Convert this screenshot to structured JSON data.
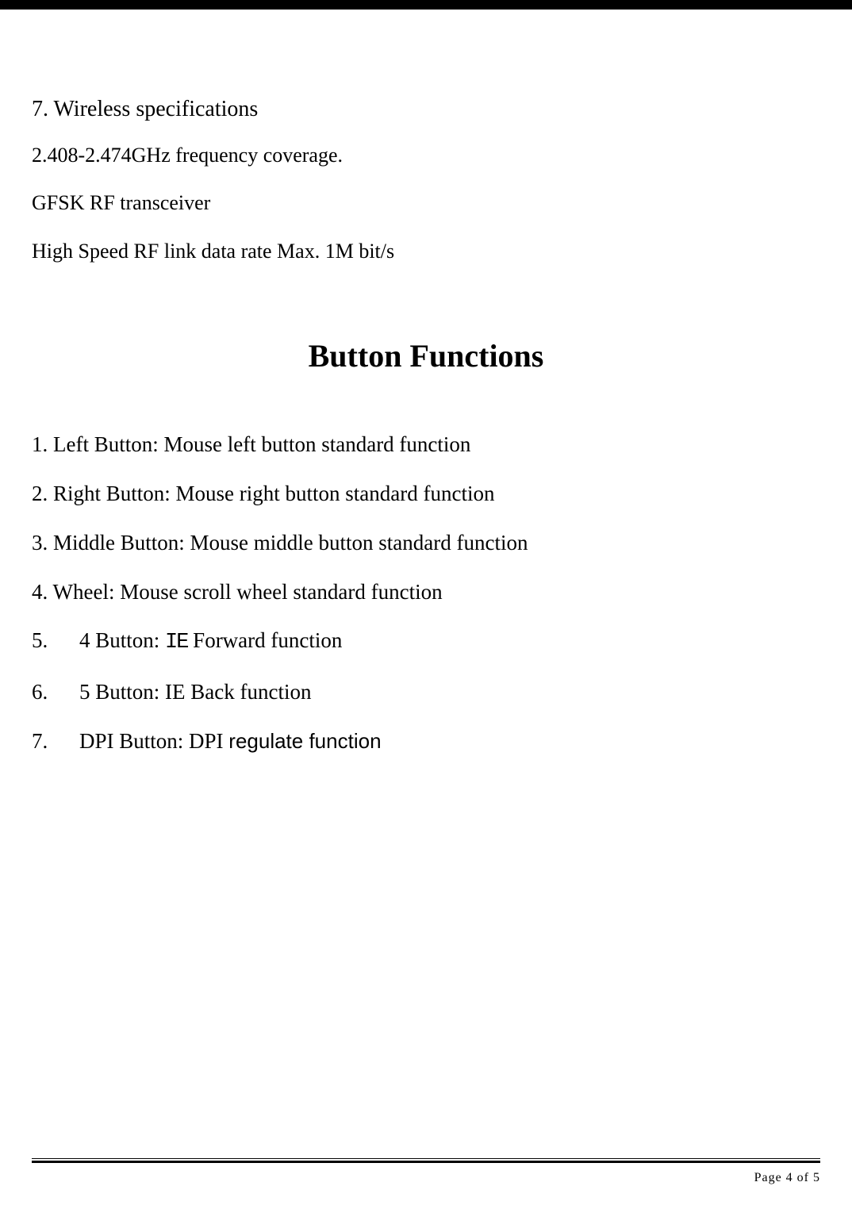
{
  "section7": {
    "heading": "7. Wireless specifications",
    "line1": "2.408-2.474GHz frequency coverage.",
    "line2": "GFSK RF transceiver",
    "line3": "High Speed RF link data rate Max. 1M bit/s"
  },
  "title": "Button Functions",
  "buttons": {
    "item1": "1. Left Button: Mouse left button standard function",
    "item2": "2. Right Button: Mouse right button standard function",
    "item3": "3. Middle Button: Mouse middle button standard function",
    "item4": "4. Wheel: Mouse scroll wheel standard function",
    "item5_num": "5.",
    "item5_text": "4 Button: ",
    "item5_ie": "IE",
    "item5_rest": " Forward function",
    "item6_num": "6.",
    "item6_text": "5 Button: IE Back function",
    "item7_num": "7.",
    "item7_text": "DPI Button: DPI ",
    "item7_sans": "regulate function"
  },
  "footer": {
    "page_text": "Page 4 of 5"
  },
  "colors": {
    "background": "#ffffff",
    "text": "#000000",
    "border": "#000000"
  },
  "typography": {
    "body_font": "Times New Roman",
    "body_size_pt": 20,
    "title_size_pt": 30,
    "title_weight": "bold",
    "sans_font": "Arial",
    "footer_size_pt": 12
  }
}
